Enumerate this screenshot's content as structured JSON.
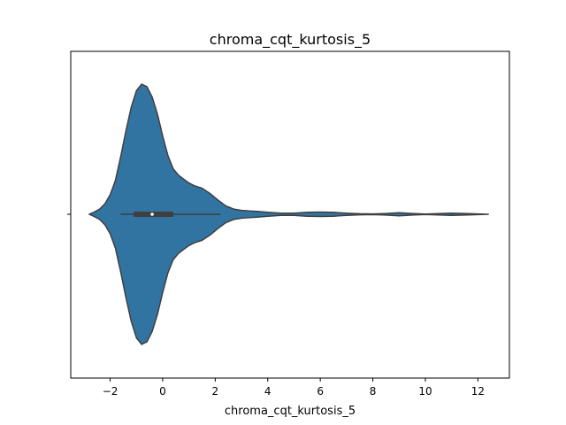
{
  "chart_data": {
    "type": "violin",
    "title": "chroma_cqt_kurtosis_5",
    "xlabel": "chroma_cqt_kurtosis_5",
    "ylabel": "",
    "xlim": [
      -3.5,
      13.2
    ],
    "xticks": [
      -2,
      0,
      2,
      4,
      6,
      8,
      10,
      12
    ],
    "grid": false,
    "orientation": "horizontal",
    "colors": {
      "fill": "#3274a1",
      "edge": "#3f3f3f",
      "box": "#3f3f3f",
      "median": "#ffffff"
    },
    "density": {
      "x": [
        -2.8,
        -2.6,
        -2.4,
        -2.2,
        -2.0,
        -1.8,
        -1.6,
        -1.4,
        -1.2,
        -1.0,
        -0.8,
        -0.6,
        -0.4,
        -0.2,
        0.0,
        0.2,
        0.4,
        0.6,
        0.8,
        1.0,
        1.2,
        1.5,
        1.8,
        2.1,
        2.4,
        2.7,
        3.0,
        3.3,
        3.6,
        4.0,
        4.5,
        5.0,
        5.5,
        6.0,
        6.5,
        7.0,
        7.5,
        8.0,
        8.5,
        9.0,
        9.5,
        10.0,
        10.5,
        11.0,
        11.5,
        12.0,
        12.4
      ],
      "width": [
        0.0,
        0.018,
        0.04,
        0.08,
        0.15,
        0.26,
        0.44,
        0.64,
        0.82,
        0.95,
        1.0,
        0.98,
        0.9,
        0.77,
        0.6,
        0.45,
        0.35,
        0.3,
        0.27,
        0.24,
        0.22,
        0.2,
        0.16,
        0.11,
        0.065,
        0.04,
        0.03,
        0.025,
        0.022,
        0.015,
        0.008,
        0.009,
        0.015,
        0.017,
        0.015,
        0.008,
        0.004,
        0.003,
        0.006,
        0.012,
        0.006,
        0.002,
        0.005,
        0.009,
        0.006,
        0.003,
        0.0
      ]
    },
    "box": {
      "whisker_low": -1.6,
      "q1": -1.1,
      "median": -0.4,
      "q3": 0.4,
      "whisker_high": 2.2
    }
  }
}
